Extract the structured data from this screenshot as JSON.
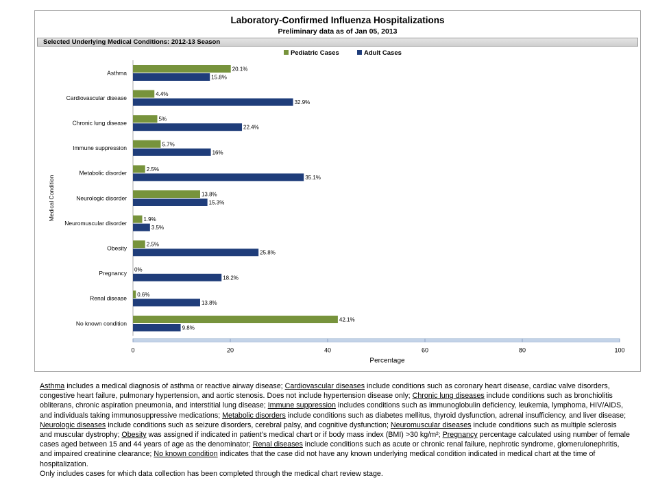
{
  "chart_data": {
    "type": "bar",
    "orientation": "horizontal",
    "title": "Laboratory-Confirmed Influenza Hospitalizations",
    "subtitle": "Preliminary data as of Jan 05, 2013",
    "panel_header": "Selected Underlying Medical Conditions: 2012-13 Season",
    "xlabel": "Percentage",
    "ylabel": "Medical Condition",
    "xlim": [
      0,
      100
    ],
    "xticks": [
      "0",
      "20",
      "40",
      "60",
      "80",
      "100"
    ],
    "legend_position": "top-right",
    "categories": [
      "Asthma",
      "Cardiovascular disease",
      "Chronic lung disease",
      "Immune suppression",
      "Metabolic disorder",
      "Neurologic disorder",
      "Neuromuscular disorder",
      "Obesity",
      "Pregnancy",
      "Renal disease",
      "No known condition"
    ],
    "series": [
      {
        "name": "Pediatric Cases",
        "color": "#77933c",
        "values": [
          20.1,
          4.4,
          5,
          5.7,
          2.5,
          13.8,
          1.9,
          2.5,
          0,
          0.6,
          42.1
        ],
        "labels": [
          "20.1%",
          "4.4%",
          "5%",
          "5.7%",
          "2.5%",
          "13.8%",
          "1.9%",
          "2.5%",
          "0%",
          "0.6%",
          "42.1%"
        ]
      },
      {
        "name": "Adult Cases",
        "color": "#1f3d7a",
        "values": [
          15.8,
          32.9,
          22.4,
          16,
          35.1,
          15.3,
          3.5,
          25.8,
          18.2,
          13.8,
          9.8
        ],
        "labels": [
          "15.8%",
          "32.9%",
          "22.4%",
          "16%",
          "35.1%",
          "15.3%",
          "3.5%",
          "25.8%",
          "18.2%",
          "13.8%",
          "9.8%"
        ]
      }
    ]
  },
  "footnotes": {
    "paragraph": [
      {
        "term": "Asthma",
        "text": " includes a medical diagnosis of asthma or reactive airway disease; "
      },
      {
        "term": "Cardiovascular diseases",
        "text": " include conditions such as coronary heart disease, cardiac valve disorders, congestive heart failure, pulmonary hypertension, and aortic stenosis.  Does not include hypertension disease only;  "
      },
      {
        "term": "Chronic lung diseases",
        "text": " include conditions such as bronchiolitis obliterans, chronic aspiration pneumonia, and interstitial lung disease;  "
      },
      {
        "term": "Immune suppression",
        "text": " includes conditions such as immunoglobulin deficiency, leukemia, lymphoma, HIV/AIDS, and individuals taking immunosuppressive medications;  "
      },
      {
        "term": "Metabolic disorders",
        "text": " include conditions such as diabetes mellitus, thyroid dysfunction, adrenal insufficiency, and liver disease;  "
      },
      {
        "term": "Neurologic diseases",
        "text": " include conditions such as seizure disorders, cerebral palsy, and cognitive dysfunction;  "
      },
      {
        "term": "Neuromuscular diseases",
        "text": " include conditions such as multiple sclerosis and muscular dystrophy;  "
      },
      {
        "term": "Obesity",
        "text": " was assigned if indicated in patient’s medical chart or if body mass index (BMI) >30 kg/m²;  "
      },
      {
        "term": "Pregnancy",
        "text": " percentage calculated using number of female cases aged between 15 and 44 years of age as the denominator;  "
      },
      {
        "term": "Renal diseases",
        "text": " include conditions such as acute or chronic renal failure, nephrotic syndrome, glomerulonephritis, and impaired creatinine clearance;  "
      },
      {
        "term": "No known condition",
        "text": " indicates that the case did not have any known underlying medical condition indicated in medical chart at the time of hospitalization."
      }
    ],
    "last_line": "Only includes cases for which data collection has been completed through the medical chart review stage."
  }
}
